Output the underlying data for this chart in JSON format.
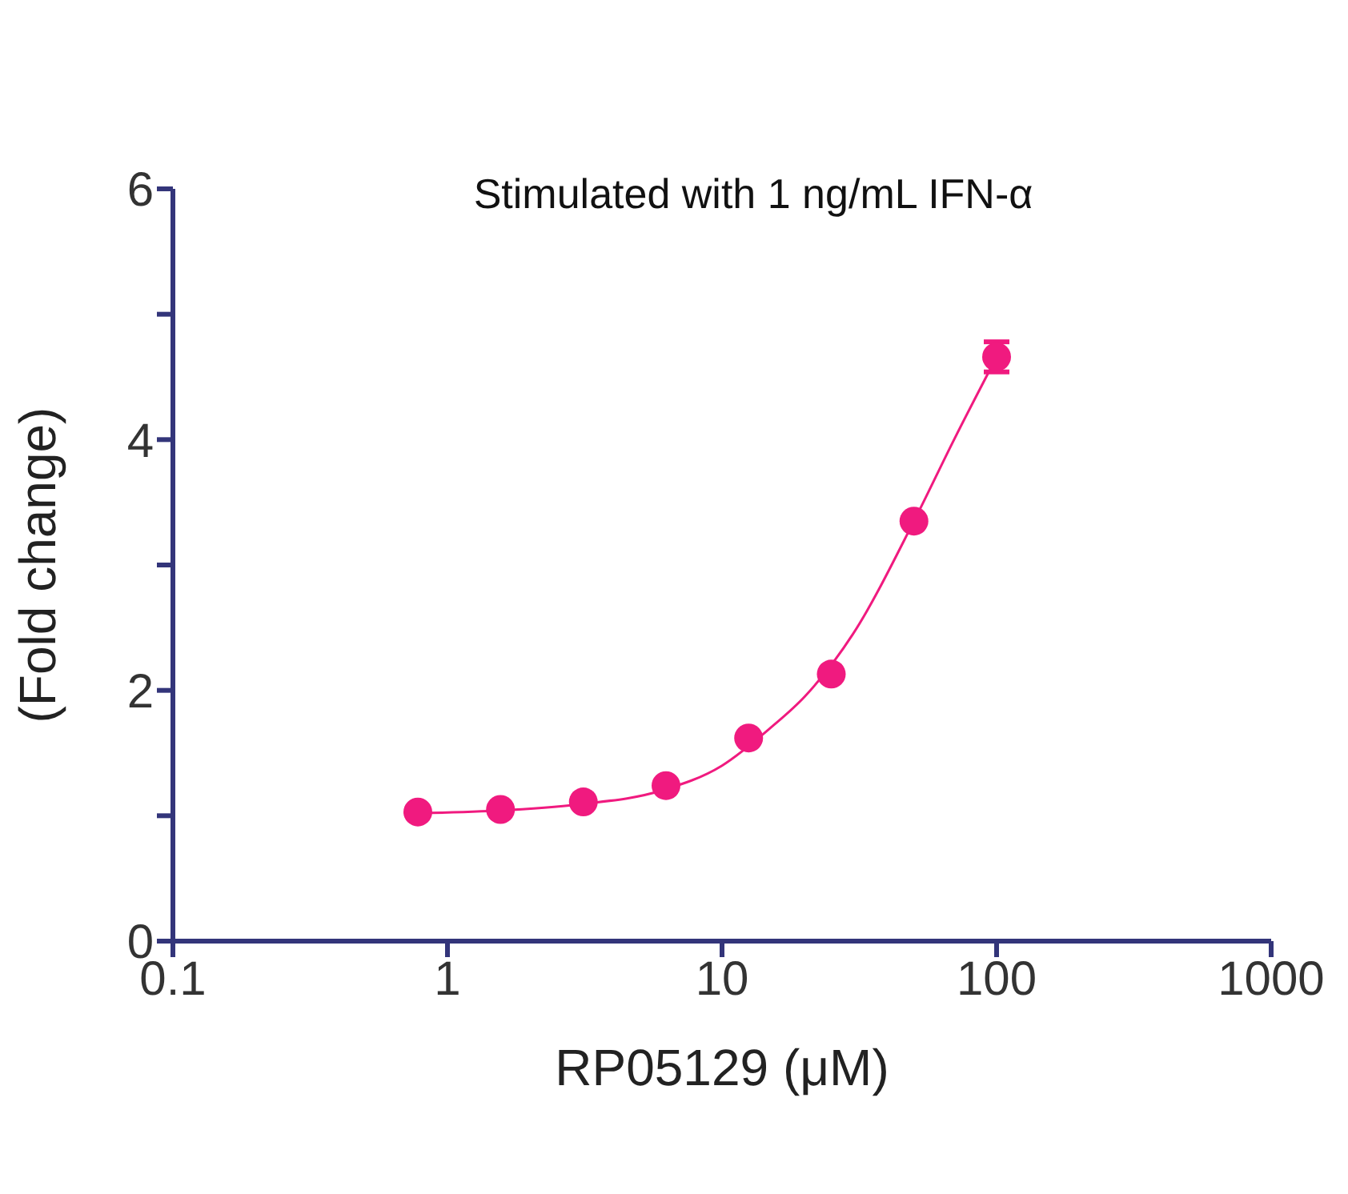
{
  "chart_data": {
    "type": "scatter",
    "title": "Stimulated with 1 ng/mL IFN-α",
    "xlabel": "RP05129 (μM)",
    "ylabel": "(Fold change)",
    "log": "x",
    "xlim": [
      0.1,
      1000
    ],
    "xticks": [
      0.1,
      1,
      10,
      100,
      1000
    ],
    "ylim": [
      0,
      6
    ],
    "yticks": [
      0,
      {
        "value": 1,
        "label": null
      },
      2,
      {
        "value": 3,
        "label": null
      },
      4,
      {
        "value": 5,
        "label": null
      },
      6
    ],
    "series": [
      {
        "color": "#f01a7f",
        "marker": "circle",
        "x": [
          0.78,
          1.56,
          3.125,
          6.25,
          12.5,
          25,
          50,
          100
        ],
        "values": [
          1.03,
          1.05,
          1.11,
          1.24,
          1.62,
          2.13,
          3.35,
          4.66
        ],
        "errors": [
          null,
          null,
          null,
          null,
          null,
          null,
          null,
          0.12
        ]
      },
      {
        "type": "line",
        "color": "#f01a7f",
        "marker": "none",
        "line_style": "solid",
        "x": [
          0.78,
          1.5,
          3,
          6,
          10,
          15,
          20,
          30,
          50,
          70,
          100
        ],
        "values": [
          1.02,
          1.04,
          1.09,
          1.2,
          1.4,
          1.7,
          1.95,
          2.45,
          3.35,
          4.0,
          4.66
        ]
      }
    ]
  }
}
